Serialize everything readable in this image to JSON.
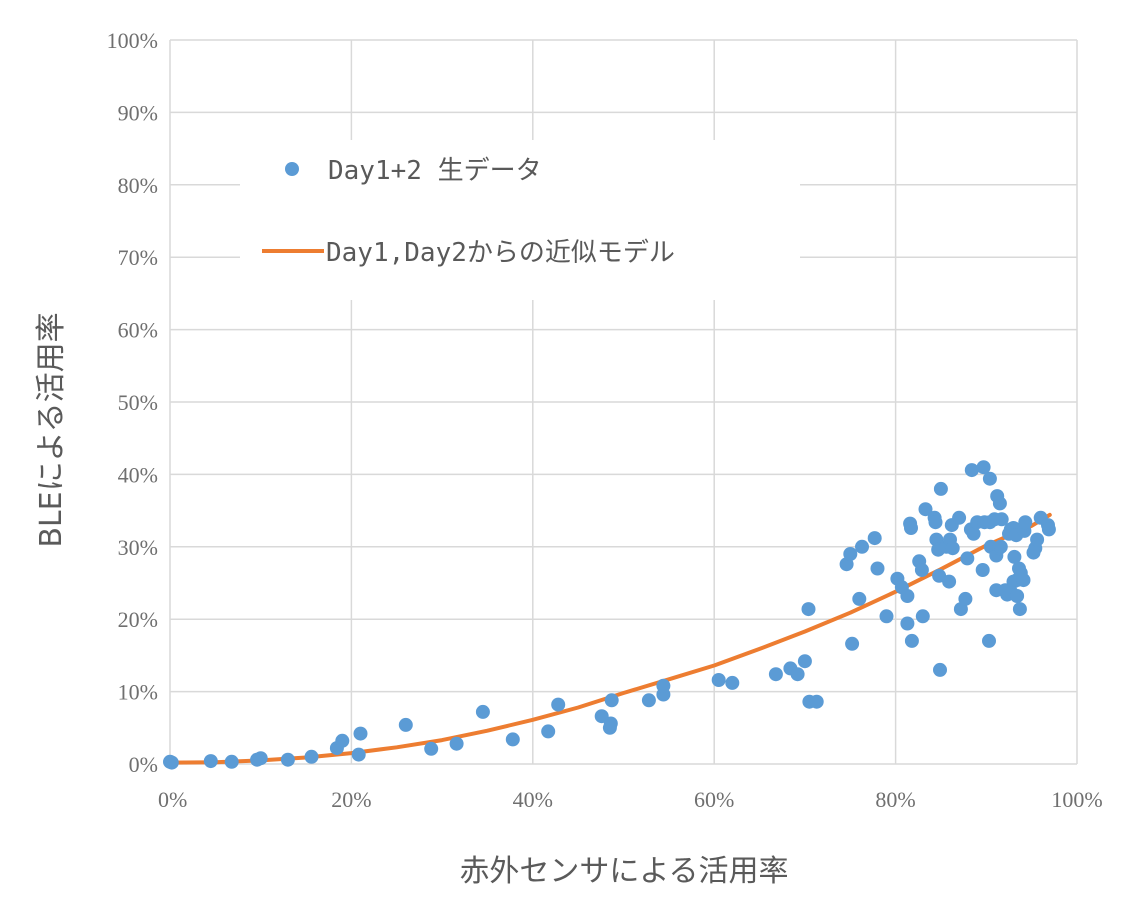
{
  "chart_data": {
    "type": "scatter",
    "xlabel": "赤外センサによる活用率",
    "ylabel": "BLEによる活用率",
    "xlim": [
      0,
      100
    ],
    "ylim": [
      0,
      100
    ],
    "x_ticks": [
      "0%",
      "20%",
      "40%",
      "60%",
      "80%",
      "100%"
    ],
    "y_ticks": [
      "0%",
      "10%",
      "20%",
      "30%",
      "40%",
      "50%",
      "60%",
      "70%",
      "80%",
      "90%",
      "100%"
    ],
    "grid": true,
    "legend_position": "upper-left",
    "series": [
      {
        "name": "Day1+2 生データ",
        "type": "scatter",
        "color": "#5b9bd5",
        "points": [
          [
            0,
            0.3
          ],
          [
            0.2,
            0.2
          ],
          [
            4.5,
            0.4
          ],
          [
            6.8,
            0.3
          ],
          [
            9.6,
            0.6
          ],
          [
            10,
            0.8
          ],
          [
            13,
            0.6
          ],
          [
            15.6,
            1
          ],
          [
            18.4,
            2.2
          ],
          [
            19,
            3.2
          ],
          [
            20.8,
            1.3
          ],
          [
            21,
            4.2
          ],
          [
            26,
            5.4
          ],
          [
            28.8,
            2.1
          ],
          [
            31.6,
            2.8
          ],
          [
            34.5,
            7.2
          ],
          [
            37.8,
            3.4
          ],
          [
            41.7,
            4.5
          ],
          [
            42.8,
            8.2
          ],
          [
            47.6,
            6.6
          ],
          [
            48.5,
            5
          ],
          [
            48.6,
            5.6
          ],
          [
            48.7,
            8.8
          ],
          [
            52.8,
            8.8
          ],
          [
            54.4,
            9.6
          ],
          [
            54.4,
            10.8
          ],
          [
            60.5,
            11.6
          ],
          [
            62,
            11.2
          ],
          [
            66.8,
            12.4
          ],
          [
            68.4,
            13.2
          ],
          [
            69.2,
            12.4
          ],
          [
            70,
            14.2
          ],
          [
            70.4,
            21.4
          ],
          [
            70.5,
            8.6
          ],
          [
            71.3,
            8.6
          ],
          [
            74.6,
            27.6
          ],
          [
            75,
            29
          ],
          [
            75.2,
            16.6
          ],
          [
            76,
            22.8
          ],
          [
            76.3,
            30
          ],
          [
            77.7,
            31.2
          ],
          [
            78,
            27
          ],
          [
            79,
            20.4
          ],
          [
            80.2,
            25.6
          ],
          [
            80.7,
            24.4
          ],
          [
            81.3,
            23.2
          ],
          [
            81.3,
            19.4
          ],
          [
            81.6,
            33.2
          ],
          [
            81.7,
            32.6
          ],
          [
            81.8,
            17
          ],
          [
            82.6,
            28
          ],
          [
            82.9,
            26.8
          ],
          [
            83,
            20.4
          ],
          [
            83.3,
            35.2
          ],
          [
            84.3,
            34
          ],
          [
            84.4,
            33.4
          ],
          [
            84.5,
            31
          ],
          [
            84.7,
            29.6
          ],
          [
            84.8,
            26
          ],
          [
            84.9,
            13
          ],
          [
            85,
            38
          ],
          [
            85.6,
            30
          ],
          [
            85.9,
            25.2
          ],
          [
            86,
            31
          ],
          [
            86.2,
            33
          ],
          [
            86.3,
            29.8
          ],
          [
            87,
            34
          ],
          [
            87.2,
            21.4
          ],
          [
            87.7,
            22.8
          ],
          [
            87.9,
            28.4
          ],
          [
            88.3,
            32.4
          ],
          [
            88.4,
            40.6
          ],
          [
            88.6,
            31.8
          ],
          [
            89,
            33.4
          ],
          [
            89.6,
            26.8
          ],
          [
            89.7,
            41
          ],
          [
            89.8,
            33.4
          ],
          [
            90.3,
            17
          ],
          [
            90.4,
            39.4
          ],
          [
            90.4,
            33.4
          ],
          [
            90.5,
            30
          ],
          [
            90.9,
            33.8
          ],
          [
            91.1,
            28.8
          ],
          [
            91.1,
            24
          ],
          [
            91.2,
            37
          ],
          [
            91.4,
            29.8
          ],
          [
            91.5,
            36
          ],
          [
            91.6,
            30
          ],
          [
            91.7,
            33.8
          ],
          [
            92.1,
            24
          ],
          [
            92.3,
            23.4
          ],
          [
            92.5,
            31.8
          ],
          [
            92.7,
            32.4
          ],
          [
            92.8,
            23.6
          ],
          [
            93,
            25.2
          ],
          [
            93,
            32.6
          ],
          [
            93.1,
            28.6
          ],
          [
            93.3,
            31.6
          ],
          [
            93.4,
            25.4
          ],
          [
            93.4,
            23.2
          ],
          [
            93.6,
            27
          ],
          [
            93.7,
            21.4
          ],
          [
            93.8,
            26.4
          ],
          [
            94.1,
            25.4
          ],
          [
            94.2,
            32.2
          ],
          [
            94.3,
            33.4
          ],
          [
            95.2,
            29.2
          ],
          [
            95.4,
            29.8
          ],
          [
            95.6,
            31
          ],
          [
            96,
            34
          ],
          [
            96.8,
            33
          ],
          [
            96.9,
            32.4
          ]
        ]
      },
      {
        "name": "Day1,Day2からの近似モデル",
        "type": "line",
        "color": "#ed7d31",
        "points": [
          [
            0,
            0.2
          ],
          [
            5,
            0.25
          ],
          [
            10,
            0.5
          ],
          [
            15,
            0.9
          ],
          [
            20,
            1.5
          ],
          [
            25,
            2.3
          ],
          [
            30,
            3.3
          ],
          [
            35,
            4.6
          ],
          [
            40,
            6.1
          ],
          [
            45,
            7.8
          ],
          [
            50,
            9.8
          ],
          [
            55,
            11.7
          ],
          [
            60,
            13.6
          ],
          [
            65,
            15.9
          ],
          [
            70,
            18.3
          ],
          [
            75,
            20.9
          ],
          [
            80,
            23.8
          ],
          [
            85,
            26.9
          ],
          [
            90,
            30.2
          ],
          [
            95,
            32.9
          ],
          [
            97,
            34.4
          ]
        ]
      }
    ]
  }
}
